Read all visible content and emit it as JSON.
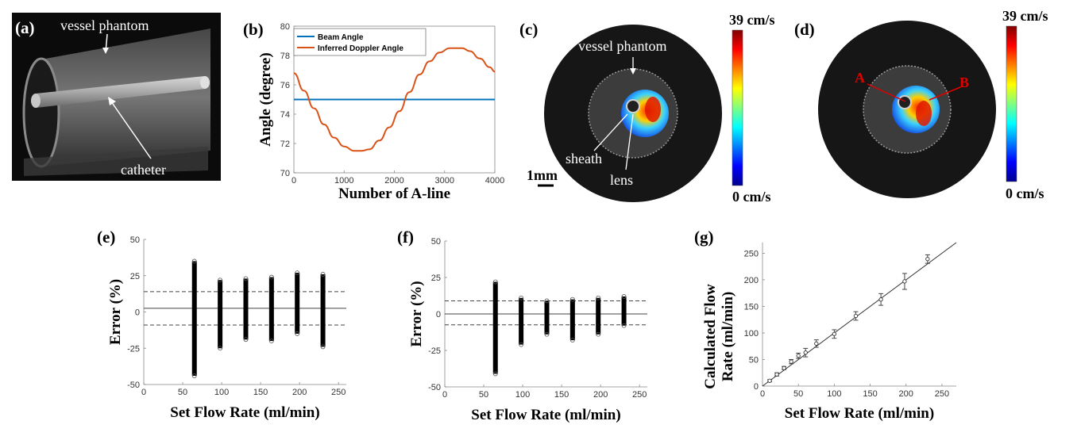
{
  "panels": {
    "a": {
      "label": "(a)",
      "annotations": [
        "vessel phantom",
        "catheter"
      ]
    },
    "b": {
      "label": "(b)"
    },
    "c": {
      "label": "(c)",
      "annotations": [
        "vessel phantom",
        "sheath",
        "lens"
      ],
      "scalebar": "1mm",
      "colorbar": {
        "max": "39 cm/s",
        "min": "0 cm/s"
      }
    },
    "d": {
      "label": "(d)",
      "markers": [
        "A",
        "B"
      ],
      "colorbar": {
        "max": "39 cm/s",
        "min": "0 cm/s"
      }
    },
    "e": {
      "label": "(e)"
    },
    "f": {
      "label": "(f)"
    },
    "g": {
      "label": "(g)"
    }
  },
  "colors": {
    "beam": "#0072BD",
    "doppler": "#D95319",
    "marker_red": "#e00000"
  },
  "chart_data": [
    {
      "id": "b",
      "type": "line",
      "xlabel": "Number of A-line",
      "ylabel": "Angle (degree)",
      "xlim": [
        0,
        4000
      ],
      "ylim": [
        70,
        80
      ],
      "xticks": [
        0,
        1000,
        2000,
        3000,
        4000
      ],
      "yticks": [
        70,
        72,
        74,
        76,
        78,
        80
      ],
      "legend_position": "top-right",
      "series": [
        {
          "name": "Beam Angle",
          "x": [
            0,
            4000
          ],
          "y": [
            75,
            75
          ]
        },
        {
          "name": "Inferred Doppler Angle",
          "x": [
            0,
            200,
            400,
            600,
            800,
            1000,
            1200,
            1350,
            1500,
            1700,
            1900,
            2100,
            2300,
            2500,
            2700,
            2900,
            3100,
            3350,
            3500,
            3700,
            3900,
            4000
          ],
          "y": [
            76.8,
            75.6,
            74.4,
            73.3,
            72.4,
            71.8,
            71.5,
            71.5,
            71.6,
            72.2,
            73.1,
            74.2,
            75.5,
            76.7,
            77.6,
            78.2,
            78.5,
            78.5,
            78.3,
            77.8,
            77.2,
            76.9
          ]
        }
      ]
    },
    {
      "id": "e",
      "type": "scatter",
      "xlabel": "Set Flow Rate (ml/min)",
      "ylabel": "Error (%)",
      "xlim": [
        0,
        260
      ],
      "ylim": [
        -50,
        50
      ],
      "xticks": [
        0,
        50,
        100,
        150,
        200,
        250
      ],
      "yticks": [
        -50,
        -25,
        0,
        25,
        50
      ],
      "mean": 2.5,
      "limits": [
        14,
        -9
      ],
      "columns": [
        {
          "x": 65,
          "min": -44,
          "max": 35
        },
        {
          "x": 98,
          "min": -25,
          "max": 22
        },
        {
          "x": 131,
          "min": -19,
          "max": 23
        },
        {
          "x": 164,
          "min": -20,
          "max": 24
        },
        {
          "x": 197,
          "min": -15,
          "max": 27
        },
        {
          "x": 230,
          "min": -24,
          "max": 26
        }
      ]
    },
    {
      "id": "f",
      "type": "scatter",
      "xlabel": "Set Flow Rate (ml/min)",
      "ylabel": "Error (%)",
      "xlim": [
        0,
        260
      ],
      "ylim": [
        -50,
        50
      ],
      "xticks": [
        0,
        50,
        100,
        150,
        200,
        250
      ],
      "yticks": [
        -50,
        -25,
        0,
        25,
        50
      ],
      "mean": 0,
      "limits": [
        9,
        -7.5
      ],
      "columns": [
        {
          "x": 65,
          "min": -41,
          "max": 22
        },
        {
          "x": 98,
          "min": -21,
          "max": 11
        },
        {
          "x": 131,
          "min": -14,
          "max": 9
        },
        {
          "x": 164,
          "min": -18,
          "max": 10
        },
        {
          "x": 197,
          "min": -14,
          "max": 11
        },
        {
          "x": 230,
          "min": -8,
          "max": 12
        }
      ]
    },
    {
      "id": "g",
      "type": "scatter",
      "xlabel": "Set Flow Rate (ml/min)",
      "ylabel": "Calculated Flow Rate (ml/min)",
      "xlim": [
        0,
        270
      ],
      "ylim": [
        0,
        270
      ],
      "xticks": [
        0,
        50,
        100,
        150,
        200,
        250
      ],
      "yticks": [
        0,
        50,
        100,
        150,
        200,
        250
      ],
      "fit_line": [
        [
          0,
          0
        ],
        [
          270,
          270
        ]
      ],
      "points": [
        {
          "x": 10,
          "y": 10,
          "err": 2
        },
        {
          "x": 20,
          "y": 22,
          "err": 3
        },
        {
          "x": 30,
          "y": 34,
          "err": 3
        },
        {
          "x": 40,
          "y": 46,
          "err": 4
        },
        {
          "x": 50,
          "y": 57,
          "err": 5
        },
        {
          "x": 60,
          "y": 63,
          "err": 8
        },
        {
          "x": 75,
          "y": 80,
          "err": 7
        },
        {
          "x": 100,
          "y": 98,
          "err": 8
        },
        {
          "x": 130,
          "y": 132,
          "err": 8
        },
        {
          "x": 165,
          "y": 163,
          "err": 11
        },
        {
          "x": 198,
          "y": 197,
          "err": 15
        },
        {
          "x": 230,
          "y": 239,
          "err": 8
        }
      ]
    }
  ]
}
